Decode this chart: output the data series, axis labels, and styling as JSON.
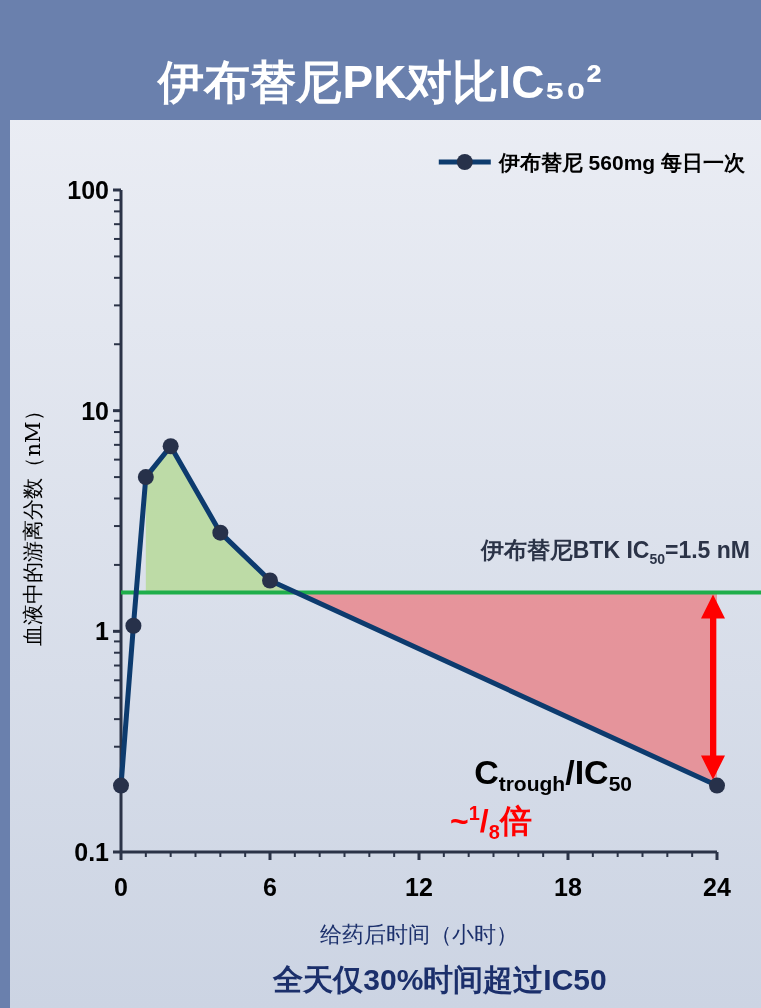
{
  "chart_data": {
    "type": "line",
    "title": "伊布替尼PK对比IC₅₀²",
    "xlabel": "给药后时间（小时）",
    "ylabel": "血液中的游离分数（nM）",
    "x": [
      0,
      0.5,
      1,
      2,
      4,
      6,
      24
    ],
    "series": [
      {
        "name": "伊布替尼 560mg 每日一次",
        "color": "#0d3b6e",
        "values": [
          0.2,
          1.06,
          5.0,
          6.9,
          2.8,
          1.7,
          0.2
        ]
      }
    ],
    "xlim": [
      0,
      24
    ],
    "xticks": [
      0,
      6,
      12,
      18,
      24
    ],
    "ylim": [
      0.1,
      100
    ],
    "yticks": [
      0.1,
      1,
      10,
      100
    ],
    "log": "y",
    "marker": "circle",
    "legend": "top right",
    "ref_lines": [
      {
        "axis": "y",
        "value": 1.5,
        "label": "伊布替尼BTK IC$_{50}$=1.5 nM",
        "color": "#1fae4b"
      }
    ],
    "annotations": [
      {
        "text": "C$_{trough}$/IC$_{50}$",
        "x": 24,
        "y": 0.2
      },
      "~$^{1}$/$_{8}$倍",
      "全天仅30%时间超过IC50"
    ]
  }
}
